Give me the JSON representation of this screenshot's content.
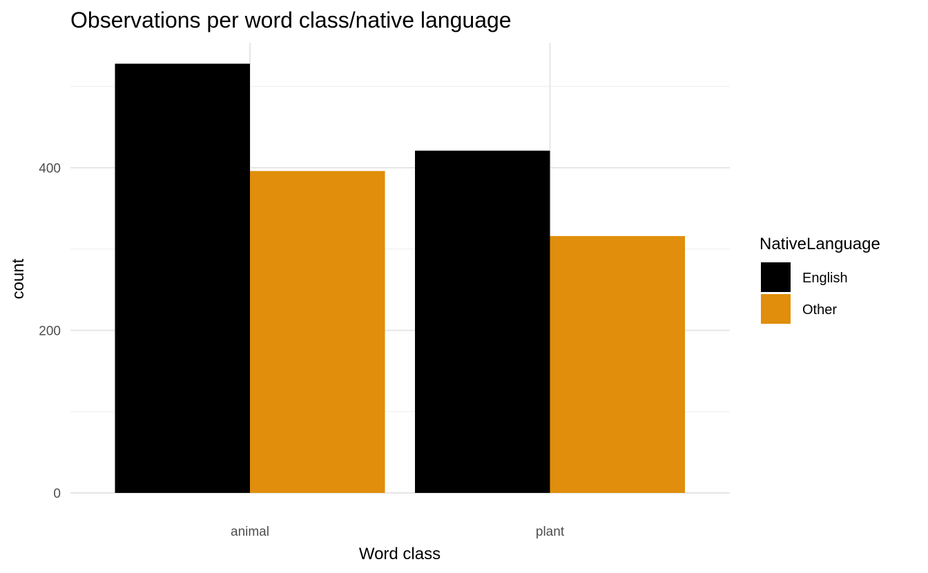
{
  "chart_data": {
    "type": "bar",
    "title": "Observations per word class/native language",
    "xlabel": "Word class",
    "ylabel": "count",
    "categories": [
      "animal",
      "plant"
    ],
    "series": [
      {
        "name": "English",
        "color": "#000000",
        "values": [
          528,
          421
        ]
      },
      {
        "name": "Other",
        "color": "#E08E0B",
        "values": [
          396,
          316
        ]
      }
    ],
    "ylim": [
      0,
      560
    ],
    "y_ticks": [
      0,
      200,
      400
    ],
    "y_tick_labels": [
      "0",
      "200",
      "400"
    ],
    "grid": true,
    "legend": {
      "title": "NativeLanguage",
      "position": "right"
    }
  }
}
